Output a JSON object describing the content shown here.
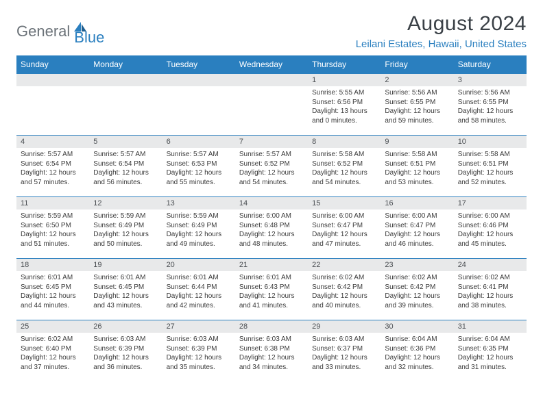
{
  "brand": {
    "part1": "General",
    "part2": "Blue"
  },
  "title": "August 2024",
  "location": "Leilani Estates, Hawaii, United States",
  "colors": {
    "header_bg": "#2a7fbf",
    "header_text": "#ffffff",
    "daynum_bg": "#e8e9ea",
    "border": "#2a7fbf",
    "logo_gray": "#6b7278",
    "logo_blue": "#2a7fbf"
  },
  "weekdays": [
    "Sunday",
    "Monday",
    "Tuesday",
    "Wednesday",
    "Thursday",
    "Friday",
    "Saturday"
  ],
  "weeks": [
    [
      {
        "n": "",
        "sr": "",
        "ss": "",
        "dl": ""
      },
      {
        "n": "",
        "sr": "",
        "ss": "",
        "dl": ""
      },
      {
        "n": "",
        "sr": "",
        "ss": "",
        "dl": ""
      },
      {
        "n": "",
        "sr": "",
        "ss": "",
        "dl": ""
      },
      {
        "n": "1",
        "sr": "Sunrise: 5:55 AM",
        "ss": "Sunset: 6:56 PM",
        "dl": "Daylight: 13 hours and 0 minutes."
      },
      {
        "n": "2",
        "sr": "Sunrise: 5:56 AM",
        "ss": "Sunset: 6:55 PM",
        "dl": "Daylight: 12 hours and 59 minutes."
      },
      {
        "n": "3",
        "sr": "Sunrise: 5:56 AM",
        "ss": "Sunset: 6:55 PM",
        "dl": "Daylight: 12 hours and 58 minutes."
      }
    ],
    [
      {
        "n": "4",
        "sr": "Sunrise: 5:57 AM",
        "ss": "Sunset: 6:54 PM",
        "dl": "Daylight: 12 hours and 57 minutes."
      },
      {
        "n": "5",
        "sr": "Sunrise: 5:57 AM",
        "ss": "Sunset: 6:54 PM",
        "dl": "Daylight: 12 hours and 56 minutes."
      },
      {
        "n": "6",
        "sr": "Sunrise: 5:57 AM",
        "ss": "Sunset: 6:53 PM",
        "dl": "Daylight: 12 hours and 55 minutes."
      },
      {
        "n": "7",
        "sr": "Sunrise: 5:57 AM",
        "ss": "Sunset: 6:52 PM",
        "dl": "Daylight: 12 hours and 54 minutes."
      },
      {
        "n": "8",
        "sr": "Sunrise: 5:58 AM",
        "ss": "Sunset: 6:52 PM",
        "dl": "Daylight: 12 hours and 54 minutes."
      },
      {
        "n": "9",
        "sr": "Sunrise: 5:58 AM",
        "ss": "Sunset: 6:51 PM",
        "dl": "Daylight: 12 hours and 53 minutes."
      },
      {
        "n": "10",
        "sr": "Sunrise: 5:58 AM",
        "ss": "Sunset: 6:51 PM",
        "dl": "Daylight: 12 hours and 52 minutes."
      }
    ],
    [
      {
        "n": "11",
        "sr": "Sunrise: 5:59 AM",
        "ss": "Sunset: 6:50 PM",
        "dl": "Daylight: 12 hours and 51 minutes."
      },
      {
        "n": "12",
        "sr": "Sunrise: 5:59 AM",
        "ss": "Sunset: 6:49 PM",
        "dl": "Daylight: 12 hours and 50 minutes."
      },
      {
        "n": "13",
        "sr": "Sunrise: 5:59 AM",
        "ss": "Sunset: 6:49 PM",
        "dl": "Daylight: 12 hours and 49 minutes."
      },
      {
        "n": "14",
        "sr": "Sunrise: 6:00 AM",
        "ss": "Sunset: 6:48 PM",
        "dl": "Daylight: 12 hours and 48 minutes."
      },
      {
        "n": "15",
        "sr": "Sunrise: 6:00 AM",
        "ss": "Sunset: 6:47 PM",
        "dl": "Daylight: 12 hours and 47 minutes."
      },
      {
        "n": "16",
        "sr": "Sunrise: 6:00 AM",
        "ss": "Sunset: 6:47 PM",
        "dl": "Daylight: 12 hours and 46 minutes."
      },
      {
        "n": "17",
        "sr": "Sunrise: 6:00 AM",
        "ss": "Sunset: 6:46 PM",
        "dl": "Daylight: 12 hours and 45 minutes."
      }
    ],
    [
      {
        "n": "18",
        "sr": "Sunrise: 6:01 AM",
        "ss": "Sunset: 6:45 PM",
        "dl": "Daylight: 12 hours and 44 minutes."
      },
      {
        "n": "19",
        "sr": "Sunrise: 6:01 AM",
        "ss": "Sunset: 6:45 PM",
        "dl": "Daylight: 12 hours and 43 minutes."
      },
      {
        "n": "20",
        "sr": "Sunrise: 6:01 AM",
        "ss": "Sunset: 6:44 PM",
        "dl": "Daylight: 12 hours and 42 minutes."
      },
      {
        "n": "21",
        "sr": "Sunrise: 6:01 AM",
        "ss": "Sunset: 6:43 PM",
        "dl": "Daylight: 12 hours and 41 minutes."
      },
      {
        "n": "22",
        "sr": "Sunrise: 6:02 AM",
        "ss": "Sunset: 6:42 PM",
        "dl": "Daylight: 12 hours and 40 minutes."
      },
      {
        "n": "23",
        "sr": "Sunrise: 6:02 AM",
        "ss": "Sunset: 6:42 PM",
        "dl": "Daylight: 12 hours and 39 minutes."
      },
      {
        "n": "24",
        "sr": "Sunrise: 6:02 AM",
        "ss": "Sunset: 6:41 PM",
        "dl": "Daylight: 12 hours and 38 minutes."
      }
    ],
    [
      {
        "n": "25",
        "sr": "Sunrise: 6:02 AM",
        "ss": "Sunset: 6:40 PM",
        "dl": "Daylight: 12 hours and 37 minutes."
      },
      {
        "n": "26",
        "sr": "Sunrise: 6:03 AM",
        "ss": "Sunset: 6:39 PM",
        "dl": "Daylight: 12 hours and 36 minutes."
      },
      {
        "n": "27",
        "sr": "Sunrise: 6:03 AM",
        "ss": "Sunset: 6:39 PM",
        "dl": "Daylight: 12 hours and 35 minutes."
      },
      {
        "n": "28",
        "sr": "Sunrise: 6:03 AM",
        "ss": "Sunset: 6:38 PM",
        "dl": "Daylight: 12 hours and 34 minutes."
      },
      {
        "n": "29",
        "sr": "Sunrise: 6:03 AM",
        "ss": "Sunset: 6:37 PM",
        "dl": "Daylight: 12 hours and 33 minutes."
      },
      {
        "n": "30",
        "sr": "Sunrise: 6:04 AM",
        "ss": "Sunset: 6:36 PM",
        "dl": "Daylight: 12 hours and 32 minutes."
      },
      {
        "n": "31",
        "sr": "Sunrise: 6:04 AM",
        "ss": "Sunset: 6:35 PM",
        "dl": "Daylight: 12 hours and 31 minutes."
      }
    ]
  ]
}
